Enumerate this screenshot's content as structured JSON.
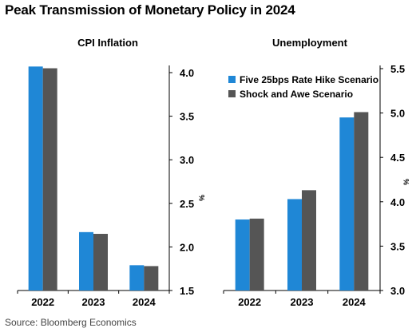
{
  "title": "Peak Transmission of Monetary Policy in 2024",
  "source": "Source: Bloomberg Economics",
  "colors": {
    "series1": "#1f87d6",
    "series2": "#555555",
    "axis": "#000000"
  },
  "chart_data": [
    {
      "type": "bar",
      "title": "CPI Inflation",
      "ylabel": "%",
      "categories": [
        "2022",
        "2023",
        "2024"
      ],
      "ylim": [
        1.5,
        4.2
      ],
      "yticks": [
        1.5,
        2.0,
        2.5,
        3.0,
        3.5,
        4.0
      ],
      "ytick_labels": [
        "1.5",
        "2.0",
        "2.5",
        "3.0",
        "3.5",
        "4.0"
      ],
      "series": [
        {
          "values": [
            4.07,
            2.17,
            1.79
          ]
        },
        {
          "values": [
            4.05,
            2.15,
            1.78
          ]
        }
      ],
      "grid": false
    },
    {
      "type": "bar",
      "title": "Unemployment",
      "ylabel": "%",
      "categories": [
        "2022",
        "2023",
        "2024"
      ],
      "ylim": [
        3.0,
        5.5
      ],
      "yticks": [
        3.0,
        3.5,
        4.0,
        4.5,
        5.0,
        5.5
      ],
      "ytick_labels": [
        "3.0",
        "3.5",
        "4.0",
        "4.5",
        "5.0",
        "5.5"
      ],
      "series": [
        {
          "name": "Five 25bps Rate Hike Scenario",
          "values": [
            3.8,
            4.03,
            4.95
          ]
        },
        {
          "name": "Shock and Awe Scenario",
          "values": [
            3.81,
            4.13,
            5.01
          ]
        }
      ],
      "legend": "top-left",
      "grid": false
    }
  ]
}
